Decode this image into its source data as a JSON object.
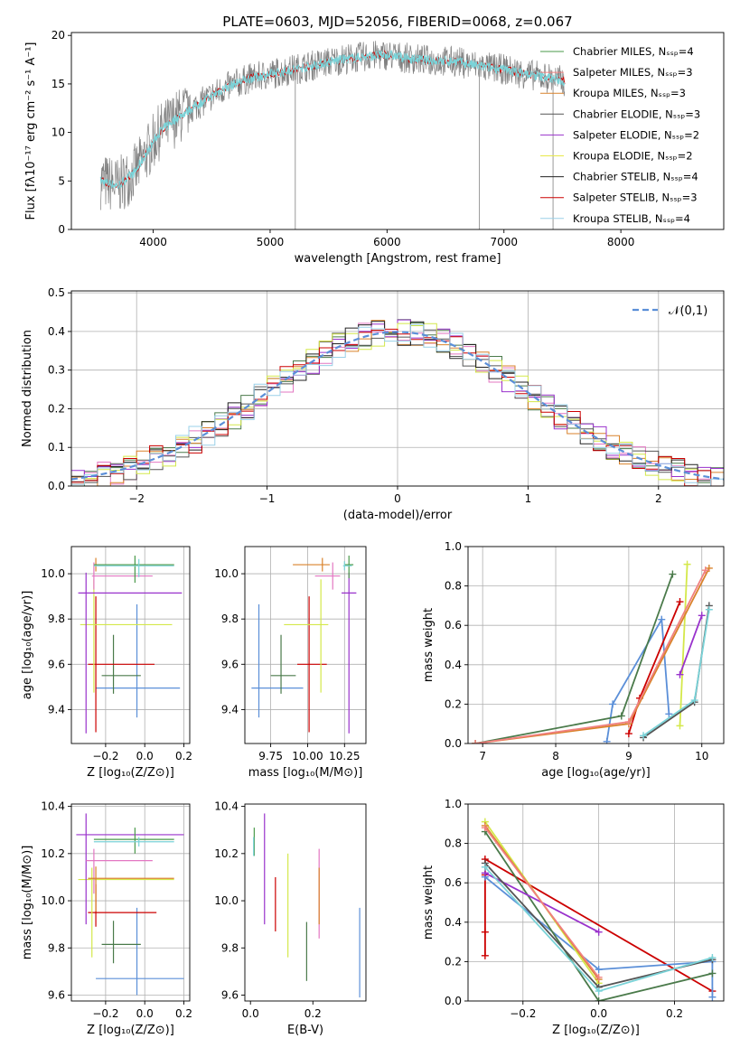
{
  "figure_title": "PLATE=0603, MJD=52056, FIBERID=0068, z=0.067",
  "chart_data": [
    {
      "id": "spectrum",
      "type": "line",
      "title": "PLATE=0603, MJD=52056, FIBERID=0068, z=0.067",
      "xlabel": "wavelength [Angstrom, rest frame]",
      "ylabel": "Flux [fλ10⁻¹⁷ erg cm⁻² s⁻¹ A⁻¹]",
      "xlim": [
        3300,
        8880
      ],
      "ylim": [
        0,
        20.3
      ],
      "xticks": [
        4000,
        5000,
        6000,
        7000,
        8000
      ],
      "yticks": [
        0,
        5,
        10,
        15,
        20
      ],
      "grid": false,
      "legend_position": "right",
      "legend": [
        {
          "label": "Chabrier MILES, Nₛₛₚ=4",
          "color": "#4a9a4a"
        },
        {
          "label": "Salpeter MILES, Nₛₛₚ=3",
          "color": "#f08080"
        },
        {
          "label": "Kroupa MILES, Nₛₛₚ=3",
          "color": "#d9822b"
        },
        {
          "label": "Chabrier ELODIE, Nₛₛₚ=3",
          "color": "#555555"
        },
        {
          "label": "Salpeter ELODIE, Nₛₛₚ=2",
          "color": "#9932cc"
        },
        {
          "label": "Kroupa ELODIE, Nₛₛₚ=2",
          "color": "#e8e84a"
        },
        {
          "label": "Chabrier STELIB, Nₛₛₚ=4",
          "color": "#222222"
        },
        {
          "label": "Salpeter STELIB, Nₛₛₚ=3",
          "color": "#cc0000"
        },
        {
          "label": "Kroupa STELIB, Nₛₛₚ=4",
          "color": "#9ad0e8"
        }
      ],
      "observed_spectrum_color": "#808080",
      "model_spectrum_color": "#7ad3d8",
      "continuum": {
        "x": [
          3550,
          3700,
          3850,
          3950,
          4050,
          4200,
          4400,
          4600,
          4800,
          5000,
          5200,
          5400,
          5600,
          5800,
          6000,
          6200,
          6400,
          6600,
          6800,
          7000,
          7200,
          7400,
          7500
        ],
        "y": [
          5.0,
          4.5,
          6.0,
          8.0,
          10.0,
          11.5,
          13.0,
          14.5,
          15.5,
          16.0,
          16.5,
          17.0,
          17.5,
          17.8,
          18.0,
          17.6,
          17.4,
          17.3,
          16.8,
          16.5,
          16.0,
          15.6,
          15.3
        ]
      }
    },
    {
      "id": "residuals",
      "type": "histogram",
      "xlabel": "(data-model)/error",
      "ylabel": "Normed distribution",
      "xlim": [
        -2.5,
        2.5
      ],
      "ylim": [
        0,
        0.505
      ],
      "xticks": [
        -2,
        -1,
        0,
        1,
        2
      ],
      "yticks": [
        0.0,
        0.1,
        0.2,
        0.3,
        0.4,
        0.5
      ],
      "grid": true,
      "legend_position": "top-right",
      "reference_curve": {
        "label": "𝒩(0,1)",
        "color": "#5b8fd8",
        "style": "dashed"
      },
      "bin_width": 0.1,
      "series_colors": [
        "#4a7a4a",
        "#e377c2",
        "#d9822b",
        "#555555",
        "#9932cc",
        "#d4e84a",
        "#222222",
        "#cc0000",
        "#9ad0e8"
      ]
    },
    {
      "id": "age-vs-Z",
      "type": "errorbar",
      "xlabel": "Z [log₁₀(Z/Z⊙)]",
      "ylabel": "age  [log₁₀(age/yr)]",
      "xlim": [
        -0.375,
        0.23
      ],
      "ylim": [
        9.25,
        10.12
      ],
      "xticks": [
        -0.2,
        0.0,
        0.2
      ],
      "yticks": [
        9.4,
        9.6,
        9.8,
        10.0
      ],
      "grid": true,
      "points": [
        {
          "x": -0.04,
          "xerr": [
            0.21,
            0.22
          ],
          "y": 9.495,
          "yerr": [
            0.13,
            0.37
          ],
          "color": "#5b8fd8"
        },
        {
          "x": -0.16,
          "xerr": [
            0.06,
            0.14
          ],
          "y": 9.55,
          "yerr": [
            0.08,
            0.18
          ],
          "color": "#4a7a4a"
        },
        {
          "x": -0.25,
          "xerr": [
            0.04,
            0.3
          ],
          "y": 9.6,
          "yerr": [
            0.3,
            0.3
          ],
          "color": "#cc0000"
        },
        {
          "x": -0.26,
          "xerr": [
            0.07,
            0.4
          ],
          "y": 9.775,
          "yerr": [
            0.3,
            0.2
          ],
          "color": "#d4e84a"
        },
        {
          "x": -0.3,
          "xerr": [
            0.04,
            0.49
          ],
          "y": 9.915,
          "yerr": [
            0.62,
            0.09
          ],
          "color": "#9932cc"
        },
        {
          "x": -0.26,
          "xerr": [
            0.01,
            0.3
          ],
          "y": 9.99,
          "yerr": [
            0.06,
            0.06
          ],
          "color": "#e377c2"
        },
        {
          "x": -0.25,
          "xerr": [
            0.01,
            0.4
          ],
          "y": 10.04,
          "yerr": [
            0.03,
            0.03
          ],
          "color": "#d9822b"
        },
        {
          "x": -0.05,
          "xerr": [
            0.21,
            0.2
          ],
          "y": 10.04,
          "yerr": [
            0.08,
            0.04
          ],
          "color": "#4a9a4a"
        },
        {
          "x": -0.03,
          "xerr": [
            0.23,
            0.18
          ],
          "y": 10.035,
          "yerr": [
            0.05,
            0.03
          ],
          "color": "#7ad3d8"
        }
      ]
    },
    {
      "id": "age-vs-mass",
      "type": "errorbar",
      "xlabel": "mass [log₁₀(M/M⊙)]",
      "ylabel": "",
      "xlim": [
        9.575,
        10.395
      ],
      "ylim": [
        9.25,
        10.12
      ],
      "xticks": [
        9.75,
        10.0,
        10.25
      ],
      "xtick_labels": [
        "9.75",
        "10.00",
        "10.25"
      ],
      "yticks": [
        9.4,
        9.6,
        9.8,
        10.0
      ],
      "grid": true,
      "points": [
        {
          "x": 9.67,
          "xerr": [
            0.05,
            0.3
          ],
          "y": 9.495,
          "yerr": [
            0.13,
            0.37
          ],
          "color": "#5b8fd8"
        },
        {
          "x": 9.82,
          "xerr": [
            0.07,
            0.1
          ],
          "y": 9.55,
          "yerr": [
            0.08,
            0.18
          ],
          "color": "#4a7a4a"
        },
        {
          "x": 10.01,
          "xerr": [
            0.08,
            0.12
          ],
          "y": 9.6,
          "yerr": [
            0.3,
            0.3
          ],
          "color": "#cc0000"
        },
        {
          "x": 10.09,
          "xerr": [
            0.25,
            0.05
          ],
          "y": 9.775,
          "yerr": [
            0.3,
            0.2
          ],
          "color": "#d4e84a"
        },
        {
          "x": 10.28,
          "xerr": [
            0.05,
            0.05
          ],
          "y": 9.915,
          "yerr": [
            0.62,
            0.09
          ],
          "color": "#9932cc"
        },
        {
          "x": 10.17,
          "xerr": [
            0.12,
            0.05
          ],
          "y": 9.99,
          "yerr": [
            0.06,
            0.06
          ],
          "color": "#e377c2"
        },
        {
          "x": 10.1,
          "xerr": [
            0.2,
            0.05
          ],
          "y": 10.04,
          "yerr": [
            0.03,
            0.03
          ],
          "color": "#d9822b"
        },
        {
          "x": 10.28,
          "xerr": [
            0.03,
            0.03
          ],
          "y": 10.04,
          "yerr": [
            0.06,
            0.04
          ],
          "color": "#4a9a4a"
        },
        {
          "x": 10.25,
          "xerr": [
            0.01,
            0.05
          ],
          "y": 10.035,
          "yerr": [
            0.02,
            0.02
          ],
          "color": "#7ad3d8"
        }
      ]
    },
    {
      "id": "mass-weight-vs-age",
      "type": "line",
      "xlabel": "age  [log₁₀(age/yr)]",
      "ylabel": "mass weight",
      "xlim": [
        6.8,
        10.3
      ],
      "ylim": [
        0,
        1.0
      ],
      "xticks": [
        7,
        8,
        9,
        10
      ],
      "yticks": [
        0.0,
        0.2,
        0.4,
        0.6,
        0.8,
        1.0
      ],
      "grid": true,
      "series": [
        {
          "color": "#5b8fd8",
          "x": [
            8.7,
            8.78,
            9.45,
            9.55
          ],
          "y": [
            0.01,
            0.2,
            0.63,
            0.15
          ]
        },
        {
          "color": "#4a7a4a",
          "x": [
            6.9,
            8.9,
            9.6
          ],
          "y": [
            0.0,
            0.14,
            0.86
          ]
        },
        {
          "color": "#cc0000",
          "x": [
            9.0,
            9.15,
            9.7
          ],
          "y": [
            0.05,
            0.23,
            0.72
          ]
        },
        {
          "color": "#d4e84a",
          "x": [
            9.7,
            9.8
          ],
          "y": [
            0.09,
            0.91
          ]
        },
        {
          "color": "#9932cc",
          "x": [
            9.7,
            10.0
          ],
          "y": [
            0.35,
            0.65
          ]
        },
        {
          "color": "#555555",
          "x": [
            9.2,
            9.9,
            10.1
          ],
          "y": [
            0.03,
            0.21,
            0.7
          ]
        },
        {
          "color": "#7ad3d8",
          "x": [
            9.2,
            9.9,
            10.1
          ],
          "y": [
            0.04,
            0.22,
            0.68
          ]
        },
        {
          "color": "#d9822b",
          "x": [
            6.9,
            9.0,
            10.1
          ],
          "y": [
            0.0,
            0.1,
            0.89
          ]
        },
        {
          "color": "#f08080",
          "x": [
            6.9,
            9.0,
            10.05
          ],
          "y": [
            0.0,
            0.11,
            0.88
          ]
        }
      ]
    },
    {
      "id": "mass-vs-Z",
      "type": "errorbar",
      "xlabel": "Z [log₁₀(Z/Z⊙)]",
      "ylabel": "mass [log₁₀(M/M⊙)]",
      "xlim": [
        -0.375,
        0.23
      ],
      "ylim": [
        9.575,
        10.41
      ],
      "xticks": [
        -0.2,
        0.0,
        0.2
      ],
      "yticks": [
        9.6,
        9.8,
        10.0,
        10.2,
        10.4
      ],
      "grid": true,
      "points": [
        {
          "x": -0.04,
          "xerr": [
            0.21,
            0.24
          ],
          "y": 9.67,
          "yerr": [
            0.07,
            0.3
          ],
          "color": "#5b8fd8"
        },
        {
          "x": -0.16,
          "xerr": [
            0.06,
            0.14
          ],
          "y": 9.815,
          "yerr": [
            0.08,
            0.1
          ],
          "color": "#4a7a4a"
        },
        {
          "x": -0.25,
          "xerr": [
            0.04,
            0.31
          ],
          "y": 9.95,
          "yerr": [
            0.06,
            0.12
          ],
          "color": "#cc0000"
        },
        {
          "x": -0.27,
          "xerr": [
            0.07,
            0.42
          ],
          "y": 10.09,
          "yerr": [
            0.33,
            0.05
          ],
          "color": "#d4e84a"
        },
        {
          "x": -0.3,
          "xerr": [
            0.05,
            0.5
          ],
          "y": 10.28,
          "yerr": [
            0.38,
            0.09
          ],
          "color": "#9932cc"
        },
        {
          "x": -0.26,
          "xerr": [
            0.04,
            0.3
          ],
          "y": 10.17,
          "yerr": [
            0.14,
            0.05
          ],
          "color": "#e377c2"
        },
        {
          "x": -0.25,
          "xerr": [
            0.04,
            0.4
          ],
          "y": 10.095,
          "yerr": [
            0.14,
            0.05
          ],
          "color": "#d9822b"
        },
        {
          "x": -0.05,
          "xerr": [
            0.21,
            0.2
          ],
          "y": 10.26,
          "yerr": [
            0.06,
            0.05
          ],
          "color": "#4a9a4a"
        },
        {
          "x": -0.03,
          "xerr": [
            0.23,
            0.18
          ],
          "y": 10.25,
          "yerr": [
            0.02,
            0.02
          ],
          "color": "#7ad3d8"
        }
      ]
    },
    {
      "id": "mass-vs-EBV",
      "type": "errorbar",
      "xlabel": "E(B-V)",
      "ylabel": "",
      "xlim": [
        -0.018,
        0.37
      ],
      "ylim": [
        9.575,
        10.41
      ],
      "xticks": [
        0.0,
        0.2
      ],
      "xtick_labels": [
        "0.0",
        "0.2"
      ],
      "yticks": [
        9.6,
        9.8,
        10.0,
        10.2,
        10.4
      ],
      "grid": false,
      "points": [
        {
          "x": 0.35,
          "xerr": [
            0,
            0
          ],
          "y": 9.78,
          "yerr": [
            0.19,
            0.19
          ],
          "color": "#5b8fd8"
        },
        {
          "x": 0.18,
          "xerr": [
            0,
            0
          ],
          "y": 9.78,
          "yerr": [
            0.12,
            0.13
          ],
          "color": "#4a7a4a"
        },
        {
          "x": 0.08,
          "xerr": [
            0,
            0
          ],
          "y": 9.98,
          "yerr": [
            0.11,
            0.12
          ],
          "color": "#cc0000"
        },
        {
          "x": 0.12,
          "xerr": [
            0,
            0
          ],
          "y": 9.98,
          "yerr": [
            0.22,
            0.22
          ],
          "color": "#d4e84a"
        },
        {
          "x": 0.045,
          "xerr": [
            0,
            0
          ],
          "y": 10.14,
          "yerr": [
            0.24,
            0.23
          ],
          "color": "#9932cc"
        },
        {
          "x": 0.22,
          "xerr": [
            0,
            0
          ],
          "y": 10.02,
          "yerr": [
            0.18,
            0.2
          ],
          "color": "#e377c2"
        },
        {
          "x": 0.22,
          "xerr": [
            0,
            0
          ],
          "y": 10.02,
          "yerr": [
            0.12,
            0.12
          ],
          "color": "#d9822b"
        },
        {
          "x": 0.012,
          "xerr": [
            0,
            0
          ],
          "y": 10.25,
          "yerr": [
            0.06,
            0.06
          ],
          "color": "#4a9a4a"
        },
        {
          "x": 0.01,
          "xerr": [
            0,
            0
          ],
          "y": 10.23,
          "yerr": [
            0.04,
            0.04
          ],
          "color": "#7ad3d8"
        }
      ]
    },
    {
      "id": "mass-weight-vs-Z",
      "type": "line",
      "xlabel": "Z [log₁₀(Z/Z⊙)]",
      "ylabel": "mass weight",
      "xlim": [
        -0.345,
        0.33
      ],
      "ylim": [
        0,
        1.0
      ],
      "xticks": [
        -0.2,
        0.0,
        0.2
      ],
      "yticks": [
        0.0,
        0.2,
        0.4,
        0.6,
        0.8,
        1.0
      ],
      "grid": true,
      "series": [
        {
          "color": "#cc0000",
          "x": [
            -0.3,
            -0.3,
            -0.3,
            -0.3,
            0.3
          ],
          "y": [
            0.23,
            0.35,
            0.64,
            0.72,
            0.05
          ]
        },
        {
          "color": "#5b8fd8",
          "x": [
            -0.3,
            0.0,
            0.3,
            0.3
          ],
          "y": [
            0.63,
            0.16,
            0.2,
            0.02
          ]
        },
        {
          "color": "#4a7a4a",
          "x": [
            -0.3,
            0.0,
            0.3
          ],
          "y": [
            0.86,
            0.0,
            0.14
          ]
        },
        {
          "color": "#d4e84a",
          "x": [
            -0.3,
            0.0
          ],
          "y": [
            0.91,
            0.09
          ]
        },
        {
          "color": "#9932cc",
          "x": [
            -0.3,
            0.0
          ],
          "y": [
            0.65,
            0.35
          ]
        },
        {
          "color": "#555555",
          "x": [
            -0.3,
            0.0,
            0.3
          ],
          "y": [
            0.7,
            0.07,
            0.21
          ]
        },
        {
          "color": "#7ad3d8",
          "x": [
            -0.3,
            0.0,
            0.3
          ],
          "y": [
            0.68,
            0.05,
            0.22
          ]
        },
        {
          "color": "#d9822b",
          "x": [
            -0.3,
            0.0
          ],
          "y": [
            0.89,
            0.11
          ]
        },
        {
          "color": "#f08080",
          "x": [
            -0.3,
            0.0
          ],
          "y": [
            0.88,
            0.12
          ]
        }
      ]
    }
  ]
}
